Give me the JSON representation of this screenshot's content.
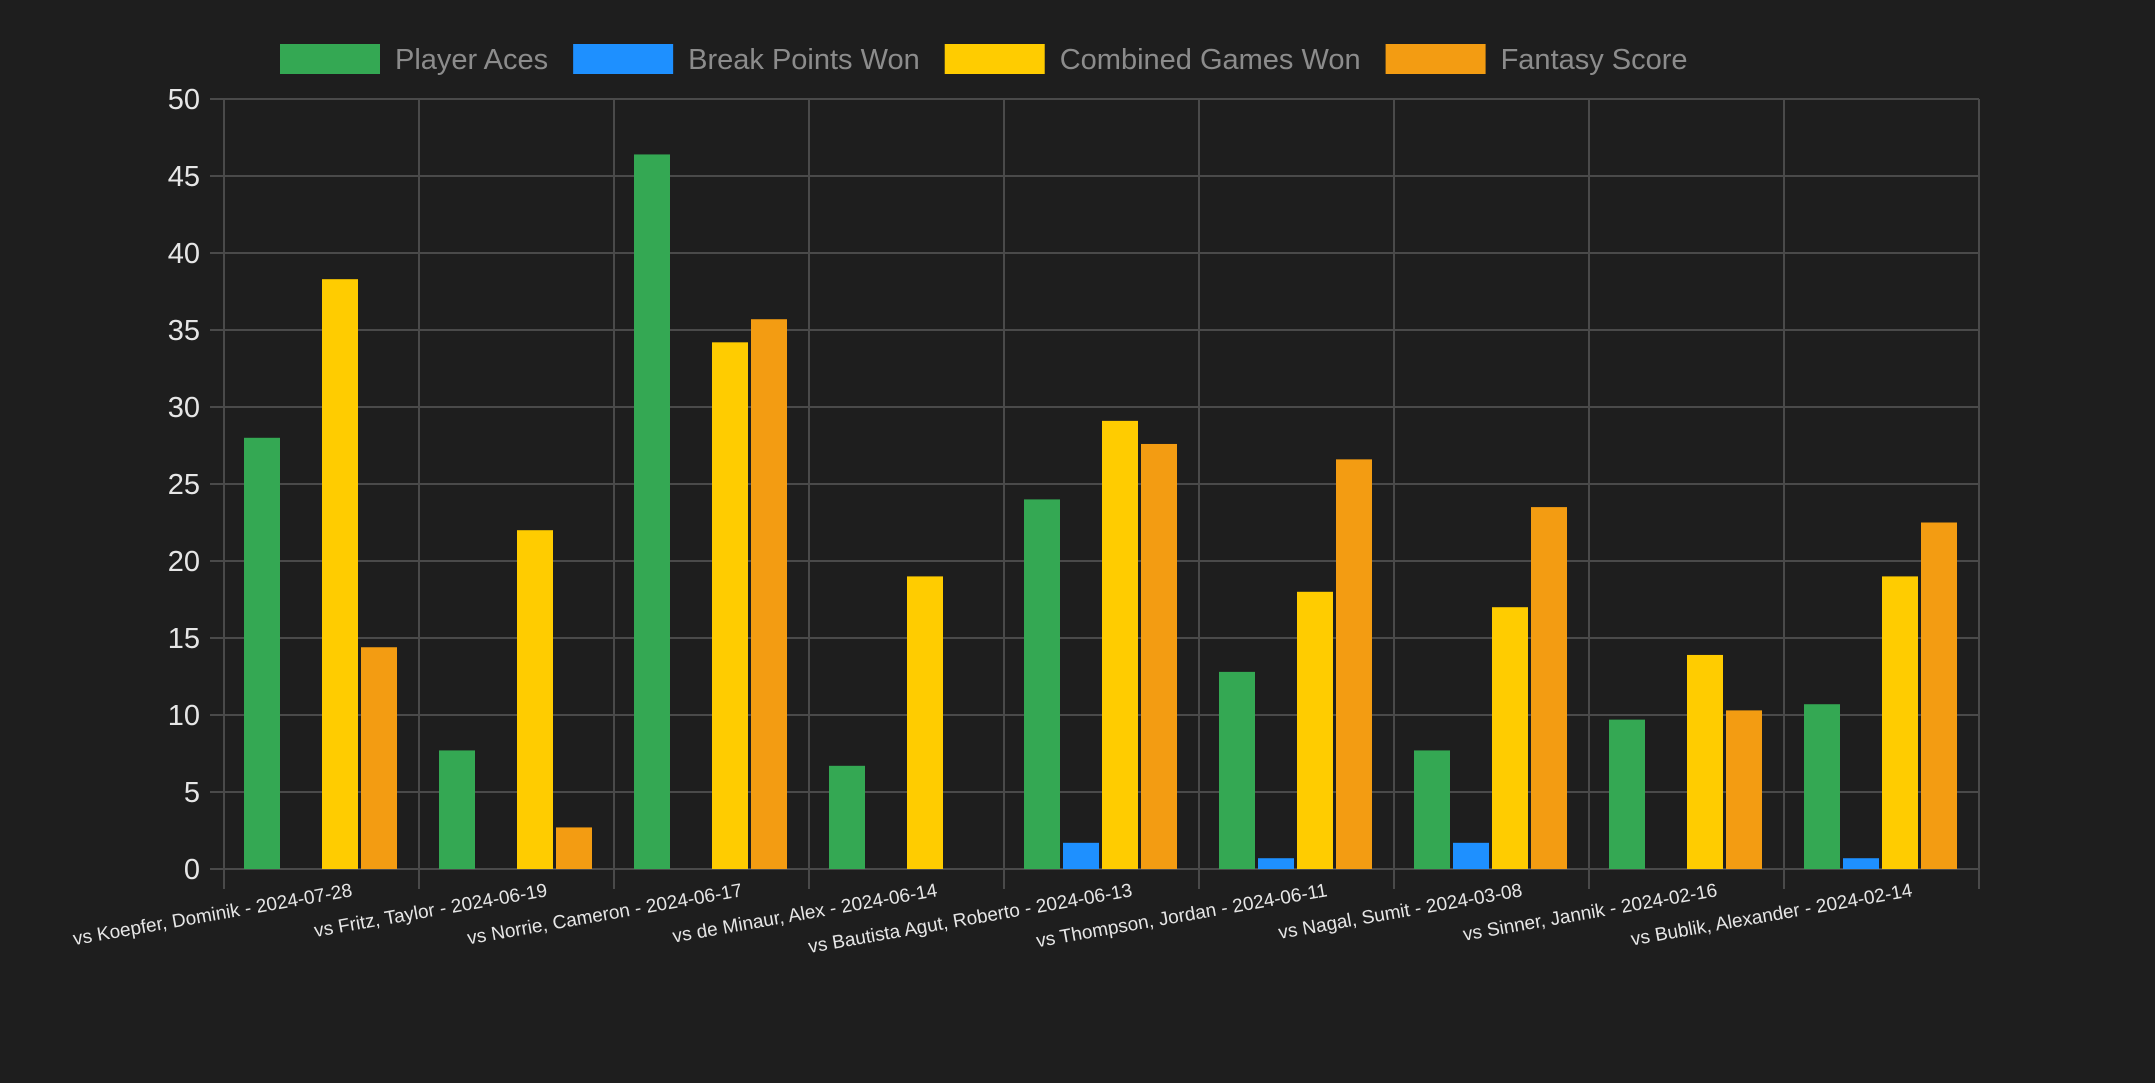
{
  "colors": {
    "background": "#1e1e1e",
    "grid": "#4a4a4a",
    "tick_text": "#e6e6e6",
    "legend_text": "#8c8c8c"
  },
  "chart_data": {
    "type": "bar",
    "title": "",
    "xlabel": "",
    "ylabel": "",
    "ylim": [
      0,
      50
    ],
    "yticks": [
      0,
      5,
      10,
      15,
      20,
      25,
      30,
      35,
      40,
      45,
      50
    ],
    "grid": true,
    "legend_position": "top",
    "categories": [
      "vs Koepfer, Dominik - 2024-07-28",
      "vs Fritz, Taylor - 2024-06-19",
      "vs Norrie, Cameron - 2024-06-17",
      "vs de Minaur, Alex - 2024-06-14",
      "vs Bautista Agut, Roberto - 2024-06-13",
      "vs Thompson, Jordan - 2024-06-11",
      "vs Nagal, Sumit - 2024-03-08",
      "vs Sinner, Jannik - 2024-02-16",
      "vs Bublik, Alexander - 2024-02-14"
    ],
    "series": [
      {
        "name": "Player Aces",
        "color": "#34a853",
        "values": [
          28,
          7.7,
          46.4,
          6.7,
          24,
          12.8,
          7.7,
          9.7,
          10.7
        ]
      },
      {
        "name": "Break Points Won",
        "color": "#1e90ff",
        "values": [
          0,
          0,
          0,
          0,
          1.7,
          0.7,
          1.7,
          0,
          0.7
        ]
      },
      {
        "name": "Combined Games Won",
        "color": "#ffcc00",
        "values": [
          38.3,
          22,
          34.2,
          19,
          29.1,
          18,
          17,
          13.9,
          19
        ]
      },
      {
        "name": "Fantasy Score",
        "color": "#f39c12",
        "values": [
          14.4,
          2.7,
          35.7,
          0,
          27.6,
          26.6,
          23.5,
          10.3,
          22.5
        ]
      }
    ]
  }
}
